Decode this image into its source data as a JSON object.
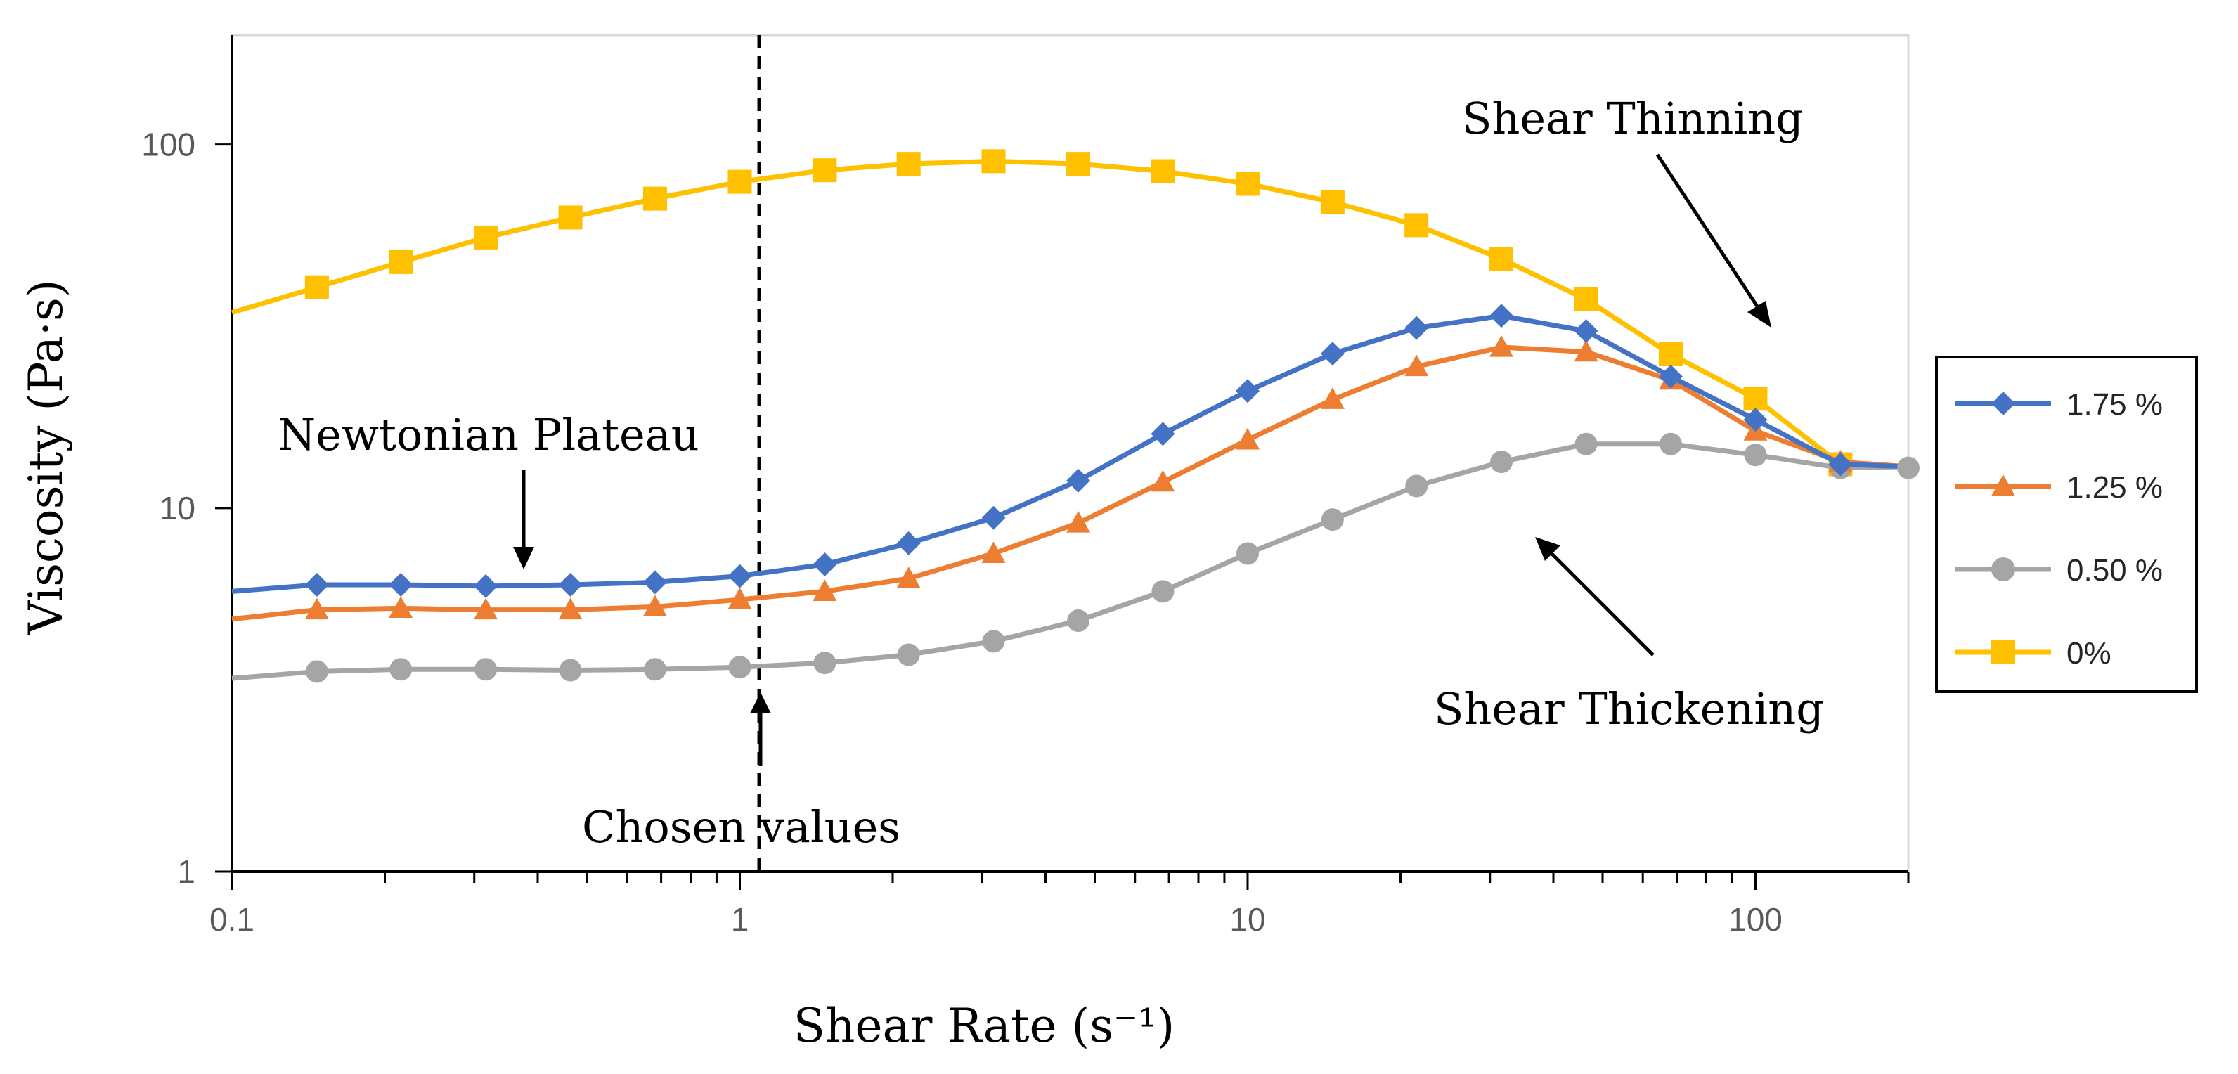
{
  "chart_data": {
    "type": "line",
    "xscale": "log",
    "yscale": "log",
    "xlabel": "Shear Rate (s⁻¹)",
    "ylabel": "Viscosity (Pa·s)",
    "xlim": [
      0.1,
      200
    ],
    "ylim": [
      1,
      200
    ],
    "x_ticks": [
      0.1,
      1,
      10,
      100
    ],
    "x_tick_labels": [
      "0.1",
      "1",
      "10",
      "100"
    ],
    "y_ticks": [
      1,
      10,
      100
    ],
    "y_tick_labels": [
      "1",
      "10",
      "100"
    ],
    "x": [
      0.1,
      0.147,
      0.215,
      0.316,
      0.464,
      0.681,
      1.0,
      1.47,
      2.15,
      3.16,
      4.64,
      6.81,
      10,
      14.7,
      21.5,
      31.6,
      46.4,
      68.1,
      100,
      147,
      215
    ],
    "series": [
      {
        "name": "1.75 %",
        "color": "#4472C4",
        "marker": "diamond",
        "values": [
          5.9,
          6.15,
          6.15,
          6.1,
          6.15,
          6.25,
          6.5,
          7.0,
          8.0,
          9.4,
          11.9,
          16.0,
          21.0,
          26.6,
          31.3,
          33.8,
          30.7,
          23.0,
          17.5,
          13.2,
          null
        ]
      },
      {
        "name": "1.25 %",
        "color": "#ED7D31",
        "marker": "triangle",
        "values": [
          4.95,
          5.25,
          5.3,
          5.25,
          5.25,
          5.35,
          5.6,
          5.9,
          6.4,
          7.5,
          9.1,
          11.8,
          15.4,
          19.9,
          24.5,
          27.7,
          26.9,
          22.5,
          16.3,
          13.4,
          null
        ]
      },
      {
        "name": "0.50 %",
        "color": "#A5A5A5",
        "marker": "circle",
        "values": [
          3.4,
          3.55,
          3.6,
          3.6,
          3.58,
          3.6,
          3.65,
          3.75,
          3.95,
          4.3,
          4.9,
          5.9,
          7.5,
          9.3,
          11.5,
          13.4,
          15.0,
          15.0,
          14.0,
          12.9,
          null
        ]
      },
      {
        "name": "0%",
        "color": "#FFC000",
        "marker": "square",
        "values": [
          34.5,
          40.5,
          47.5,
          55.5,
          63.0,
          71.0,
          79.0,
          85.0,
          88.5,
          90.0,
          88.5,
          84.5,
          78.0,
          69.5,
          60.0,
          48.5,
          37.5,
          26.5,
          20.0,
          13.2,
          null
        ]
      }
    ],
    "annotations": [
      {
        "text": "Shear Thinning"
      },
      {
        "text": "Shear Thickening"
      },
      {
        "text": "Newtonian Plateau"
      },
      {
        "text": "Chosen values"
      }
    ],
    "legend": "right",
    "grid": false
  }
}
